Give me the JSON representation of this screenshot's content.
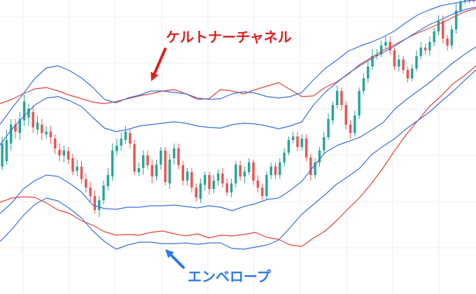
{
  "chart_data": {
    "type": "candlestick",
    "title": "",
    "xlabel": "",
    "ylabel": "",
    "grid": true,
    "ylim": [
      0,
      420
    ],
    "colors": {
      "up": "#26a69a",
      "down": "#ef5350",
      "keltner": "#e8403c",
      "envelope": "#3b6fe0",
      "grid": "#ececec",
      "keltner_label": "#e02020",
      "envelope_label": "#2e7be6"
    },
    "series": [
      {
        "name": "ケルトナーチャネル",
        "line": "keltner",
        "role": "upper",
        "values": [
          148,
          142,
          134,
          127,
          125,
          130,
          136,
          141,
          146,
          148,
          145,
          141,
          137,
          134,
          130,
          128,
          134,
          142,
          141,
          128,
          130,
          134,
          128,
          123,
          118,
          128,
          138,
          137,
          125,
          117,
          106,
          92,
          82,
          72,
          64,
          55,
          47,
          40,
          33,
          25,
          17,
          12
        ]
      },
      {
        "name": "ケルトナーチャネル",
        "line": "keltner",
        "role": "lower",
        "values": [
          289,
          283,
          281,
          282,
          290,
          300,
          305,
          315,
          322,
          331,
          336,
          335,
          336,
          332,
          330,
          334,
          337,
          334,
          340,
          336,
          337,
          335,
          332,
          339,
          342,
          350,
          352,
          340,
          330,
          315,
          298,
          282,
          262,
          240,
          215,
          192,
          172,
          152,
          137,
          120,
          108,
          94
        ]
      },
      {
        "name": "エンベロープ",
        "line": "envelope",
        "role": "upper",
        "values": [
          178,
          155,
          134,
          112,
          97,
          94,
          101,
          111,
          125,
          142,
          147,
          140,
          136,
          130,
          130,
          132,
          134,
          140,
          142,
          141,
          134,
          131,
          133,
          138,
          140,
          138,
          132,
          114,
          98,
          86,
          73,
          66,
          60,
          53,
          44,
          32,
          21,
          14,
          8,
          5,
          2,
          0
        ]
      },
      {
        "name": "エンベロープ",
        "line": "envelope",
        "role": "middle",
        "values": [
          207,
          185,
          167,
          150,
          140,
          138,
          144,
          152,
          168,
          183,
          188,
          185,
          180,
          178,
          176,
          174,
          176,
          180,
          182,
          183,
          178,
          176,
          177,
          180,
          184,
          180,
          174,
          150,
          132,
          118,
          105,
          94,
          84,
          75,
          66,
          55,
          45,
          35,
          28,
          20,
          14,
          10
        ]
      },
      {
        "name": "エンベロープ",
        "line": "envelope",
        "role": "lower",
        "values": [
          305,
          290,
          270,
          258,
          250,
          252,
          262,
          274,
          293,
          298,
          299,
          296,
          296,
          294,
          294,
          293,
          295,
          297,
          294,
          296,
          301,
          295,
          291,
          285,
          283,
          272,
          259,
          238,
          218,
          208,
          202,
          196,
          186,
          175,
          156,
          142,
          130,
          118,
          104,
          90,
          78,
          67
        ]
      },
      {
        "name": "エンベロープ",
        "line": "envelope",
        "role": "lowest",
        "values": [
          345,
          328,
          308,
          292,
          283,
          287,
          298,
          311,
          330,
          345,
          356,
          350,
          346,
          346,
          348,
          348,
          347,
          349,
          347,
          347,
          355,
          356,
          353,
          350,
          343,
          325,
          306,
          292,
          278,
          263,
          252,
          240,
          221,
          209,
          198,
          184,
          172,
          160,
          145,
          131,
          115,
          100
        ]
      }
    ],
    "candles": [
      [
        238,
        205,
        195,
        243
      ],
      [
        230,
        200,
        185,
        235
      ],
      [
        205,
        178,
        170,
        215
      ],
      [
        178,
        188,
        170,
        198
      ],
      [
        190,
        170,
        160,
        200
      ],
      [
        172,
        145,
        135,
        180
      ],
      [
        168,
        155,
        148,
        180
      ],
      [
        160,
        182,
        150,
        190
      ],
      [
        185,
        175,
        165,
        192
      ],
      [
        178,
        190,
        170,
        200
      ],
      [
        192,
        188,
        180,
        198
      ],
      [
        188,
        196,
        180,
        205
      ],
      [
        198,
        212,
        192,
        220
      ],
      [
        214,
        222,
        205,
        230
      ],
      [
        222,
        215,
        208,
        232
      ],
      [
        216,
        228,
        210,
        234
      ],
      [
        226,
        245,
        220,
        250
      ],
      [
        244,
        238,
        228,
        252
      ],
      [
        238,
        256,
        230,
        262
      ],
      [
        256,
        268,
        248,
        275
      ],
      [
        268,
        280,
        260,
        288
      ],
      [
        280,
        300,
        272,
        305
      ],
      [
        300,
        286,
        280,
        310
      ],
      [
        286,
        265,
        258,
        292
      ],
      [
        266,
        250,
        240,
        272
      ],
      [
        252,
        215,
        205,
        258
      ],
      [
        216,
        208,
        198,
        222
      ],
      [
        208,
        198,
        190,
        215
      ],
      [
        200,
        188,
        180,
        205
      ],
      [
        190,
        205,
        185,
        212
      ],
      [
        206,
        245,
        200,
        250
      ],
      [
        246,
        240,
        232,
        252
      ],
      [
        240,
        222,
        215,
        250
      ],
      [
        222,
        236,
        215,
        242
      ],
      [
        236,
        252,
        228,
        262
      ],
      [
        252,
        235,
        228,
        258
      ],
      [
        235,
        215,
        210,
        242
      ],
      [
        215,
        260,
        210,
        265
      ],
      [
        262,
        228,
        220,
        270
      ],
      [
        226,
        212,
        205,
        235
      ],
      [
        212,
        236,
        205,
        242
      ],
      [
        236,
        258,
        230,
        265
      ],
      [
        258,
        245,
        240,
        265
      ],
      [
        246,
        268,
        240,
        275
      ],
      [
        268,
        282,
        262,
        288
      ],
      [
        284,
        262,
        255,
        290
      ],
      [
        264,
        250,
        245,
        272
      ],
      [
        250,
        270,
        245,
        278
      ],
      [
        270,
        258,
        250,
        276
      ],
      [
        258,
        248,
        242,
        265
      ],
      [
        248,
        262,
        240,
        268
      ],
      [
        262,
        275,
        255,
        280
      ],
      [
        275,
        262,
        255,
        282
      ],
      [
        262,
        235,
        230,
        268
      ],
      [
        236,
        252,
        230,
        258
      ],
      [
        252,
        245,
        238,
        262
      ],
      [
        246,
        232,
        226,
        250
      ],
      [
        232,
        258,
        228,
        264
      ],
      [
        258,
        268,
        250,
        275
      ],
      [
        268,
        280,
        262,
        285
      ],
      [
        280,
        250,
        245,
        285
      ],
      [
        250,
        238,
        232,
        256
      ],
      [
        238,
        250,
        232,
        256
      ],
      [
        250,
        232,
        226,
        256
      ],
      [
        232,
        218,
        212,
        238
      ],
      [
        218,
        200,
        195,
        222
      ],
      [
        200,
        195,
        188,
        205
      ],
      [
        195,
        210,
        188,
        216
      ],
      [
        210,
        198,
        192,
        215
      ],
      [
        198,
        225,
        192,
        230
      ],
      [
        225,
        250,
        220,
        258
      ],
      [
        250,
        232,
        226,
        255
      ],
      [
        232,
        215,
        210,
        238
      ],
      [
        215,
        196,
        188,
        220
      ],
      [
        196,
        170,
        162,
        200
      ],
      [
        172,
        150,
        145,
        178
      ],
      [
        150,
        130,
        122,
        155
      ],
      [
        130,
        150,
        125,
        158
      ],
      [
        150,
        178,
        145,
        185
      ],
      [
        178,
        190,
        172,
        198
      ],
      [
        190,
        165,
        158,
        195
      ],
      [
        165,
        130,
        125,
        170
      ],
      [
        130,
        112,
        105,
        135
      ],
      [
        112,
        95,
        88,
        118
      ],
      [
        95,
        80,
        70,
        100
      ],
      [
        80,
        78,
        70,
        85
      ],
      [
        78,
        65,
        58,
        82
      ],
      [
        65,
        60,
        52,
        70
      ],
      [
        60,
        72,
        52,
        78
      ],
      [
        72,
        95,
        68,
        100
      ],
      [
        95,
        85,
        78,
        102
      ],
      [
        85,
        100,
        80,
        105
      ],
      [
        100,
        112,
        95,
        118
      ],
      [
        112,
        98,
        92,
        116
      ],
      [
        98,
        80,
        72,
        102
      ],
      [
        80,
        68,
        60,
        85
      ],
      [
        68,
        72,
        62,
        78
      ],
      [
        72,
        60,
        52,
        80
      ],
      [
        60,
        45,
        40,
        66
      ],
      [
        45,
        30,
        22,
        50
      ],
      [
        30,
        55,
        22,
        62
      ],
      [
        55,
        65,
        50,
        72
      ],
      [
        65,
        42,
        36,
        70
      ],
      [
        42,
        15,
        5,
        48
      ],
      [
        15,
        2,
        0,
        20
      ],
      [
        2,
        0,
        0,
        6
      ],
      [
        0,
        0,
        0,
        5
      ],
      [
        0,
        0,
        0,
        4
      ]
    ],
    "annotations": [
      {
        "text": "ケルトナーチャネル",
        "target": "keltner",
        "color": "#e02020"
      },
      {
        "text": "エンベロープ",
        "target": "envelope",
        "color": "#2e7be6"
      }
    ]
  }
}
